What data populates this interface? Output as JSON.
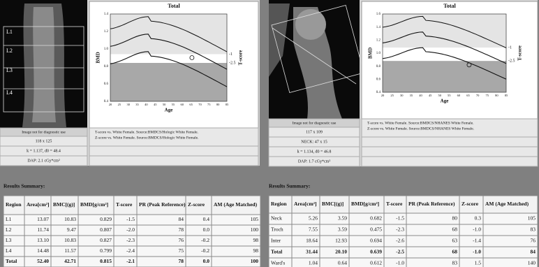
{
  "panels": [
    {
      "image_labels": [
        "L1",
        "L2",
        "L3",
        "L4"
      ],
      "chart": {
        "title": "Total",
        "xlabel": "Age",
        "ylabel": "BMD",
        "y2label": "T-score",
        "xticks": [
          20,
          25,
          30,
          35,
          40,
          45,
          50,
          55,
          60,
          65,
          70,
          75,
          80,
          85
        ],
        "yticks": [
          "1.4",
          "1.2",
          "1.0",
          "0.8",
          "0.6",
          "0.4"
        ],
        "y2ticks": [
          -1,
          -2.5
        ]
      },
      "info": {
        "notice": "Image not for diagnostic use",
        "size": "118 x 125",
        "source": [
          "T-score vs. White Female. Source:BMDCS/Hologic White Female.",
          "Z-score vs. White Female. Source:BMDCS/Hologic White Female."
        ],
        "rows": [
          "k = 1.137, d0 = 48.4",
          "DAP: 2.1 cGy*cm²"
        ]
      }
    },
    {
      "image_labels": [],
      "chart": {
        "title": "Total",
        "xlabel": "Age",
        "ylabel": "BMD",
        "y2label": "T-score",
        "xticks": [
          20,
          25,
          30,
          35,
          40,
          45,
          50,
          55,
          60,
          65,
          70,
          75,
          80,
          85
        ],
        "yticks": [
          "1.6",
          "1.4",
          "1.2",
          "1.0",
          "0.8",
          "0.6",
          "0.4"
        ],
        "y2ticks": [
          -1,
          -2.5
        ]
      },
      "info": {
        "notice": "Image not for diagnostic use",
        "size": "117 x 109",
        "source": [
          "T-score vs. White Female. Source:BMDCS/NHANES White Female.",
          "Z-score vs. White Female. Source:BMDCS/NHANES White Female."
        ],
        "rows": [
          "NECK: 47 x 15",
          "k = 1.134, d0 = 46.8",
          "DAP: 1.7 cGy*cm²"
        ]
      }
    }
  ],
  "results": [
    {
      "title": "Results Summary:",
      "columns": [
        "Region",
        "Area[cm²]",
        "BMC[(g)]",
        "BMD[g/cm²]",
        "T-score",
        "PR (Peak Reference)",
        "Z-score",
        "AM (Age Matched)"
      ],
      "rows": [
        [
          "L1",
          "13.07",
          "10.83",
          "0.829",
          "-1.5",
          "84",
          "0.4",
          "105"
        ],
        [
          "L2",
          "11.74",
          "9.47",
          "0.807",
          "-2.0",
          "78",
          "0.0",
          "100"
        ],
        [
          "L3",
          "13.10",
          "10.83",
          "0.827",
          "-2.3",
          "76",
          "-0.2",
          "98"
        ],
        [
          "L4",
          "14.48",
          "11.57",
          "0.799",
          "-2.4",
          "75",
          "-0.2",
          "98"
        ],
        [
          "Total",
          "52.40",
          "42.71",
          "0.815",
          "-2.1",
          "78",
          "0.0",
          "100"
        ]
      ]
    },
    {
      "title": "Results Summary:",
      "columns": [
        "Region",
        "Area[cm²]",
        "BMC[(g)]",
        "BMD[g/cm²]",
        "T-score",
        "PR (Peak Reference)",
        "Z-score",
        "AM (Age Matched)"
      ],
      "rows": [
        [
          "Neck",
          "5.26",
          "3.59",
          "0.682",
          "-1.5",
          "80",
          "0.3",
          "105"
        ],
        [
          "Troch",
          "7.55",
          "3.59",
          "0.475",
          "-2.3",
          "68",
          "-1.0",
          "83"
        ],
        [
          "Inter",
          "18.64",
          "12.93",
          "0.694",
          "-2.6",
          "63",
          "-1.4",
          "76"
        ],
        [
          "Total",
          "31.44",
          "20.10",
          "0.639",
          "-2.5",
          "68",
          "-1.0",
          "84"
        ],
        [
          "Ward's",
          "1.04",
          "0.64",
          "0.612",
          "-1.0",
          "83",
          "1.5",
          "140"
        ]
      ]
    }
  ]
}
